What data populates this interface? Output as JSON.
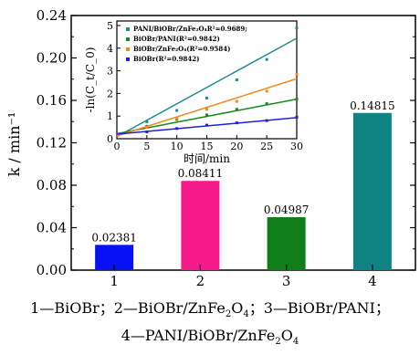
{
  "chart_data": [
    {
      "type": "bar",
      "categories": [
        "1",
        "2",
        "3",
        "4"
      ],
      "values": [
        0.02381,
        0.08411,
        0.04987,
        0.14815
      ],
      "data_labels": [
        "0.02381",
        "0.08411",
        "0.04987",
        "0.14815"
      ],
      "colors": [
        "#0a12f5",
        "#f51a8c",
        "#0f7d18",
        "#0f8282"
      ],
      "ylabel": "k / min⁻¹",
      "ylim": [
        0,
        0.24
      ],
      "yticks": [
        "0.00",
        "0.04",
        "0.08",
        "0.12",
        "0.16",
        "0.20",
        "0.24"
      ],
      "xlabel": "",
      "grid": false
    },
    {
      "type": "scatter",
      "xlabel": "时间/min",
      "ylabel": "-ln(C_t/C_0)",
      "xlim": [
        0,
        30
      ],
      "ylim": [
        0,
        5.2
      ],
      "xticks": [
        "0",
        "5",
        "10",
        "15",
        "20",
        "25",
        "30"
      ],
      "yticks": [
        "0",
        "1",
        "2",
        "3",
        "4",
        "5"
      ],
      "legend_position": "top-left",
      "series": [
        {
          "name": "PANI/BiOBr/ZnFe₂O₄R²=0.9689;",
          "color": "#1f8c8c",
          "x": [
            5,
            10,
            15,
            20,
            25,
            30
          ],
          "y": [
            0.75,
            1.25,
            1.8,
            2.6,
            3.5,
            4.9
          ],
          "fit": [
            0,
            0.09,
            30,
            4.44
          ]
        },
        {
          "name": "BiOBr/PANI(R²=0.9842)",
          "color": "#168a1a",
          "x": [
            5,
            10,
            15,
            20,
            25,
            30
          ],
          "y": [
            0.55,
            0.85,
            1.05,
            1.3,
            1.55,
            1.75
          ],
          "fit": [
            0,
            0.22,
            30,
            1.75
          ]
        },
        {
          "name": "BiOBr/ZnFe₂O₄(R²=0.9584)",
          "color": "#f08a1e",
          "x": [
            5,
            10,
            15,
            20,
            25,
            30
          ],
          "y": [
            0.5,
            0.9,
            1.3,
            1.65,
            2.1,
            2.85
          ],
          "fit": [
            0,
            0.12,
            30,
            2.65
          ]
        },
        {
          "name": "BiOBr(R²=0.9842)",
          "color": "#1e1ee6",
          "x": [
            5,
            10,
            15,
            20,
            25,
            30
          ],
          "y": [
            0.3,
            0.45,
            0.6,
            0.7,
            0.8,
            0.95
          ],
          "fit": [
            0,
            0.2,
            30,
            0.93
          ]
        }
      ]
    }
  ],
  "caption": {
    "line1": "1—BiOBr；2—BiOBr/ZnFe<sub>2</sub>O<sub>4</sub>；3—BiOBr/PANI；",
    "line2": "4—PANI/BiOBr/ZnFe<sub>2</sub>O<sub>4</sub>"
  }
}
